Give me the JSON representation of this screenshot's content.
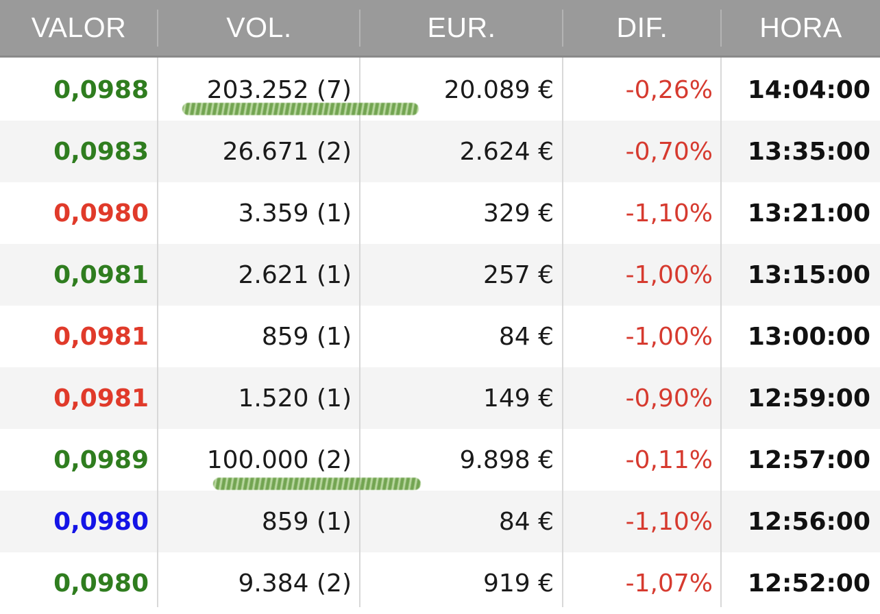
{
  "colors": {
    "green": "#2f7d1f",
    "red": "#e03a2a",
    "blue": "#1414e6",
    "neg": "#d63a2f"
  },
  "headers": {
    "valor": "VALOR",
    "vol": "VOL.",
    "eur": "EUR.",
    "dif": "DIF.",
    "hora": "HORA"
  },
  "rows": [
    {
      "valor": "0,0988",
      "valor_color": "green",
      "vol": "203.252 (7)",
      "eur": "20.089 €",
      "dif": "-0,26%",
      "hora": "14:04:00"
    },
    {
      "valor": "0,0983",
      "valor_color": "green",
      "vol": "26.671 (2)",
      "eur": "2.624 €",
      "dif": "-0,70%",
      "hora": "13:35:00"
    },
    {
      "valor": "0,0980",
      "valor_color": "red",
      "vol": "3.359 (1)",
      "eur": "329 €",
      "dif": "-1,10%",
      "hora": "13:21:00"
    },
    {
      "valor": "0,0981",
      "valor_color": "green",
      "vol": "2.621 (1)",
      "eur": "257 €",
      "dif": "-1,00%",
      "hora": "13:15:00"
    },
    {
      "valor": "0,0981",
      "valor_color": "red",
      "vol": "859 (1)",
      "eur": "84 €",
      "dif": "-1,00%",
      "hora": "13:00:00"
    },
    {
      "valor": "0,0981",
      "valor_color": "red",
      "vol": "1.520 (1)",
      "eur": "149 €",
      "dif": "-0,90%",
      "hora": "12:59:00"
    },
    {
      "valor": "0,0989",
      "valor_color": "green",
      "vol": "100.000 (2)",
      "eur": "9.898 €",
      "dif": "-0,11%",
      "hora": "12:57:00"
    },
    {
      "valor": "0,0980",
      "valor_color": "blue",
      "vol": "859 (1)",
      "eur": "84 €",
      "dif": "-1,10%",
      "hora": "12:56:00"
    },
    {
      "valor": "0,0980",
      "valor_color": "green",
      "vol": "9.384 (2)",
      "eur": "919 €",
      "dif": "-1,07%",
      "hora": "12:52:00"
    }
  ]
}
